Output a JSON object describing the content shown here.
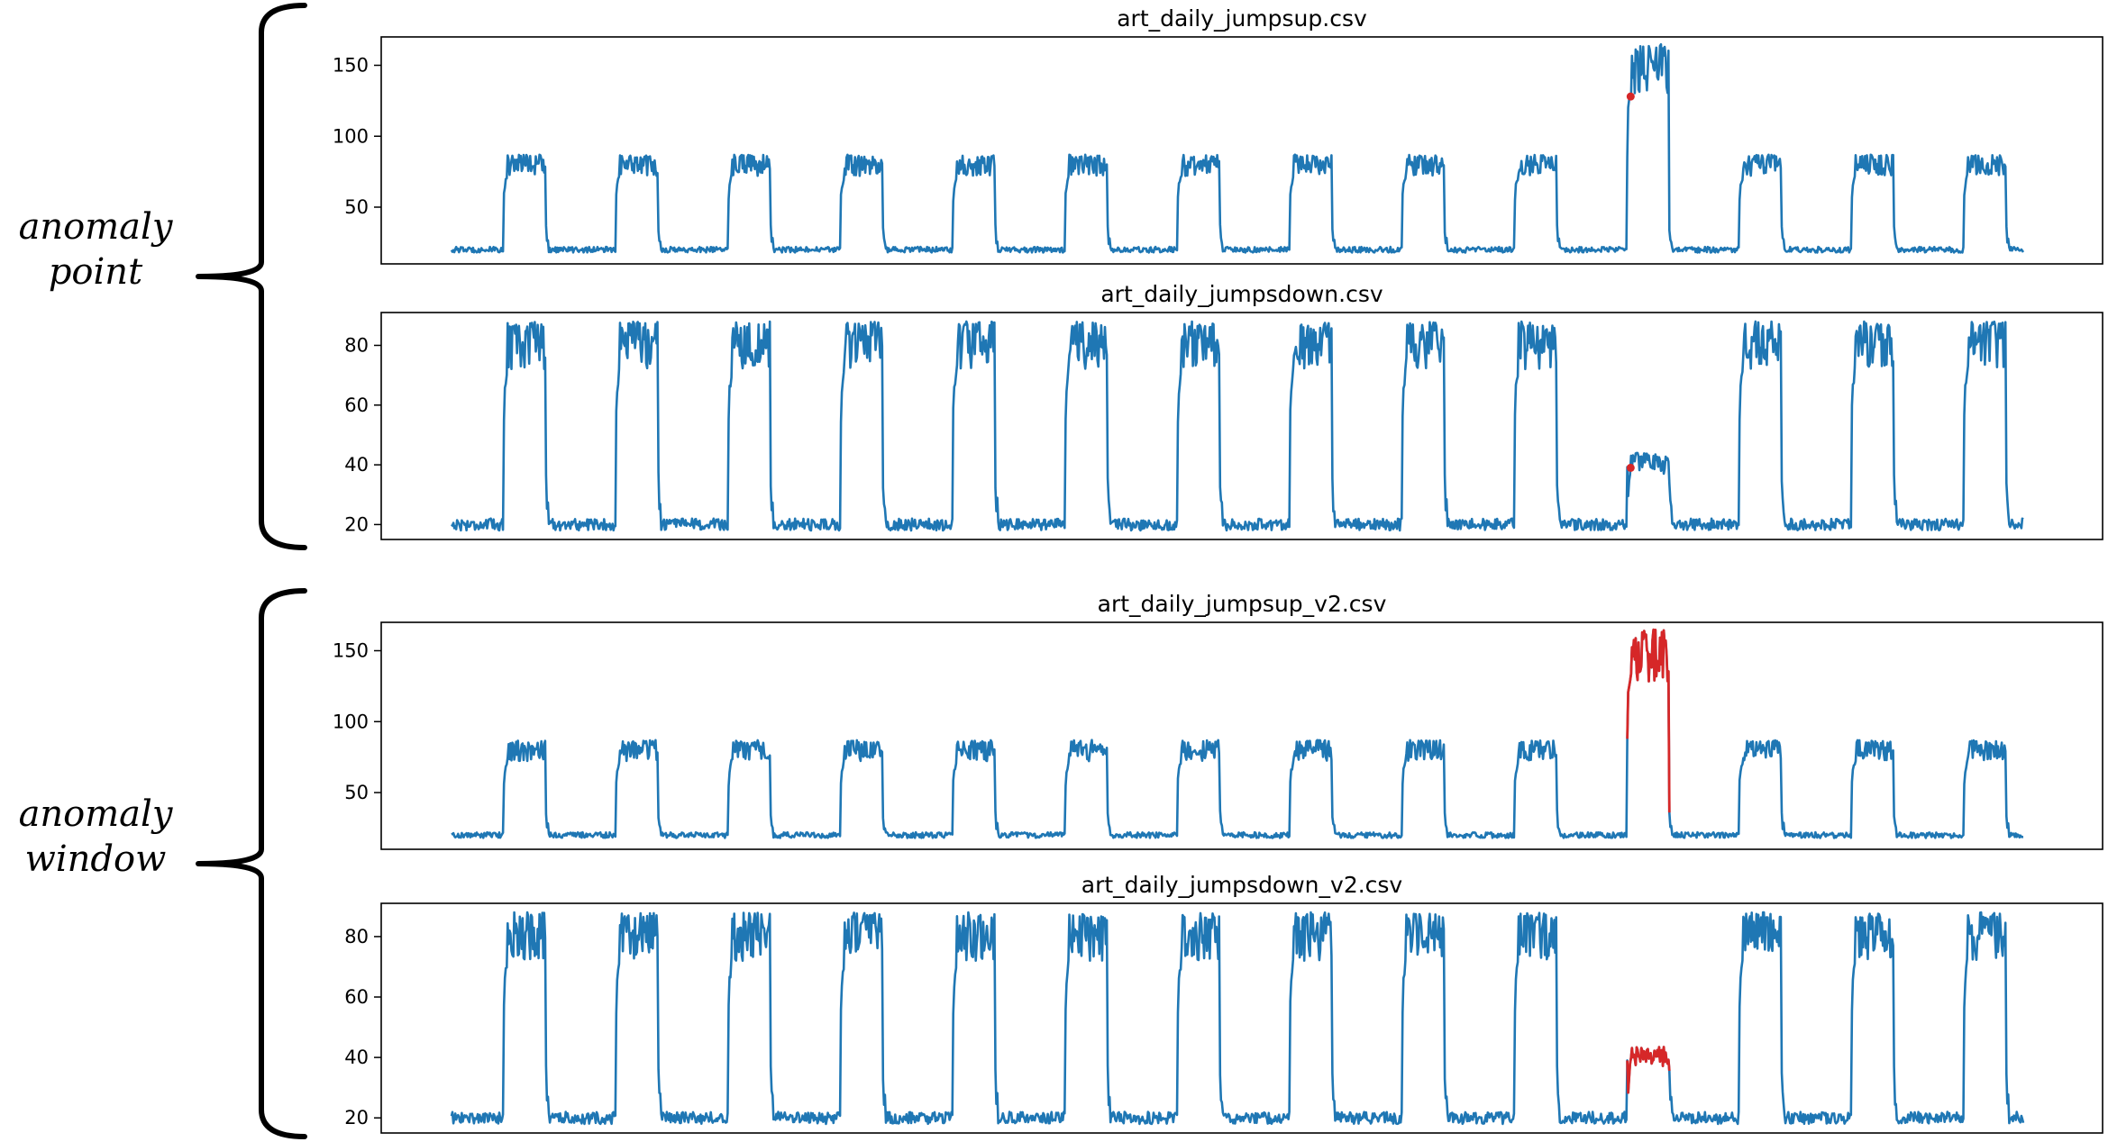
{
  "groups": [
    {
      "label_lines": [
        "anomaly",
        "point"
      ],
      "panels": [
        0,
        1
      ]
    },
    {
      "label_lines": [
        "anomaly",
        "window"
      ],
      "panels": [
        2,
        3
      ]
    }
  ],
  "colors": {
    "series": "#1f77b4",
    "anomaly": "#d62728"
  },
  "chart_data": [
    {
      "type": "line",
      "title": "art_daily_jumpsup.csv",
      "xlabel": "",
      "ylabel": "",
      "grid": false,
      "ylim": [
        10,
        170
      ],
      "yticks": [
        50,
        100,
        150
      ],
      "pattern": {
        "days": 14,
        "baseline": 20,
        "daily_high_min": 72,
        "daily_high_max": 87,
        "period_start_fraction": 0.47,
        "period_end_fraction": 0.84
      },
      "anomaly": {
        "style": "point",
        "day_index": 10,
        "jump_high_min": 128,
        "jump_high_max": 165,
        "marked_value": 128
      }
    },
    {
      "type": "line",
      "title": "art_daily_jumpsdown.csv",
      "xlabel": "",
      "ylabel": "",
      "grid": false,
      "ylim": [
        15,
        91
      ],
      "yticks": [
        20,
        40,
        60,
        80
      ],
      "pattern": {
        "days": 14,
        "baseline": 20,
        "daily_high_min": 72,
        "daily_high_max": 88,
        "period_start_fraction": 0.47,
        "period_end_fraction": 0.84
      },
      "anomaly": {
        "style": "point",
        "day_index": 10,
        "jump_high_min": 37,
        "jump_high_max": 44,
        "marked_value": 39
      }
    },
    {
      "type": "line",
      "title": "art_daily_jumpsup_v2.csv",
      "xlabel": "",
      "ylabel": "",
      "grid": false,
      "ylim": [
        10,
        170
      ],
      "yticks": [
        50,
        100,
        150
      ],
      "pattern": {
        "days": 14,
        "baseline": 20,
        "daily_high_min": 72,
        "daily_high_max": 87,
        "period_start_fraction": 0.47,
        "period_end_fraction": 0.84
      },
      "anomaly": {
        "style": "window",
        "day_index": 10,
        "jump_high_min": 128,
        "jump_high_max": 165
      }
    },
    {
      "type": "line",
      "title": "art_daily_jumpsdown_v2.csv",
      "xlabel": "",
      "ylabel": "",
      "grid": false,
      "ylim": [
        15,
        91
      ],
      "yticks": [
        20,
        40,
        60,
        80
      ],
      "pattern": {
        "days": 14,
        "baseline": 20,
        "daily_high_min": 72,
        "daily_high_max": 88,
        "period_start_fraction": 0.47,
        "period_end_fraction": 0.84
      },
      "anomaly": {
        "style": "window",
        "day_index": 10,
        "jump_high_min": 37,
        "jump_high_max": 44
      }
    }
  ]
}
